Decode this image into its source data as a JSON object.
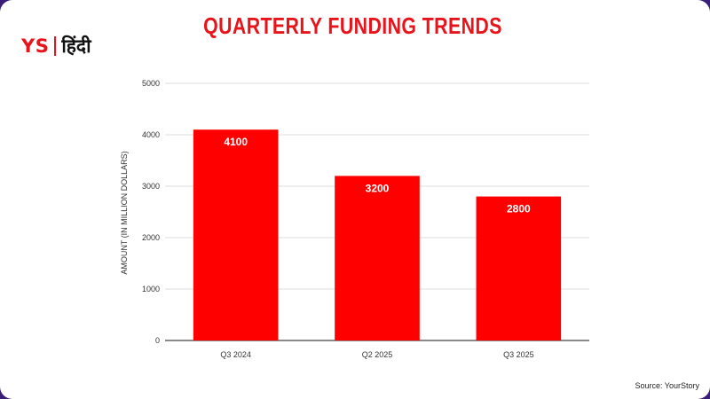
{
  "logo": {
    "brand": "YS",
    "language": "हिंदी"
  },
  "title": "QUARTERLY FUNDING TRENDS",
  "source": "Source: YourStory",
  "colors": {
    "bar": "#ff0000",
    "title": "#e8141b",
    "grid": "#dddddd",
    "axis": "#444444"
  },
  "chart_data": {
    "type": "bar",
    "title": "QUARTERLY FUNDING TRENDS",
    "categories": [
      "Q3 2024",
      "Q2 2025",
      "Q3 2025"
    ],
    "values": [
      4100,
      3200,
      2800
    ],
    "data_labels": [
      "4100",
      "3200",
      "2800"
    ],
    "xlabel": "",
    "ylabel": "AMOUNT (IN MILLION DOLLARS)",
    "ylim": [
      0,
      5000
    ],
    "yticks": [
      0,
      1000,
      2000,
      3000,
      4000,
      5000
    ],
    "grid": true,
    "legend": "none"
  }
}
